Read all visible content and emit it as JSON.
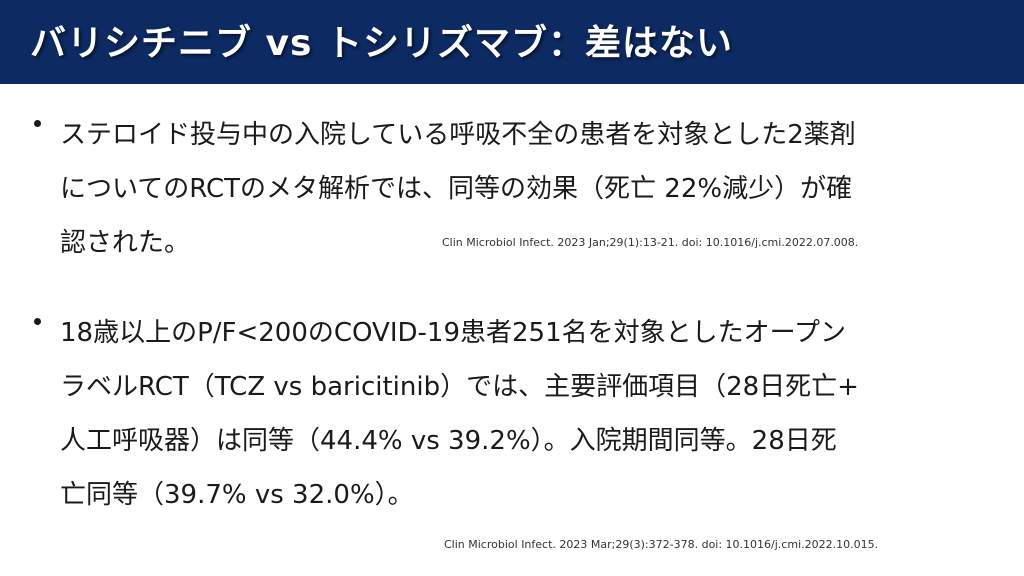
{
  "slide": {
    "title": "バリシチニブ vs トシリズマブ：差はない",
    "colors": {
      "title_bar": "#0d2a63",
      "title_text": "#ffffff",
      "body_text": "#1a1a1a"
    },
    "bullets": [
      {
        "lines": [
          "ステロイド投与中の入院している呼吸不全の患者を対象とした2薬剤",
          "についてのRCTのメタ解析では、同等の効果（死亡 22%減少）が確",
          "認された。"
        ],
        "citation": "Clin Microbiol Infect. 2023 Jan;29(1):13-21. doi: 10.1016/j.cmi.2022.07.008."
      },
      {
        "lines": [
          "18歳以上のP/F<200のCOVID-19患者251名を対象としたオープン",
          "ラベルRCT（TCZ vs baricitinib）では、主要評価項目（28日死亡+",
          "人工呼吸器）は同等（44.4% vs 39.2%）。入院期間同等。28日死",
          "亡同等（39.7% vs 32.0%）。"
        ],
        "citation": "Clin Microbiol Infect. 2023 Mar;29(3):372-378. doi: 10.1016/j.cmi.2022.10.015."
      }
    ]
  }
}
